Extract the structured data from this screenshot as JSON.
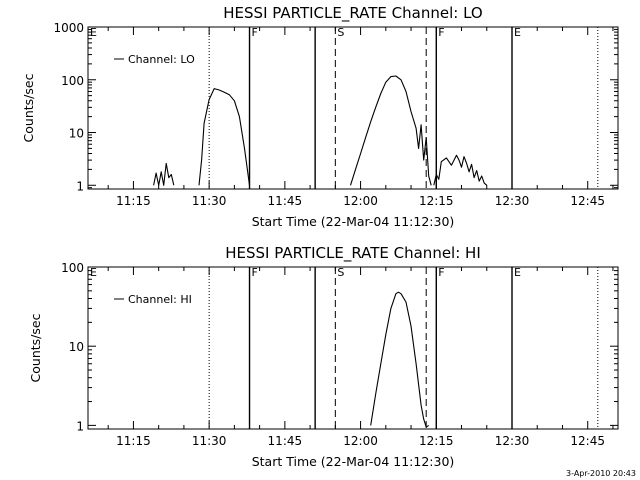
{
  "chart_data": [
    {
      "type": "line",
      "title": "HESSI PARTICLE_RATE Channel: LO",
      "xlabel": "Start Time (22-Mar-04 11:12:30)",
      "ylabel": "Counts/sec",
      "x_tick_labels": [
        "11:15",
        "11:30",
        "11:45",
        "12:00",
        "12:15",
        "12:30",
        "12:45"
      ],
      "y_tick_labels": [
        "1",
        "10",
        "100",
        "1000"
      ],
      "y_scale": "log",
      "xlim": [
        "11:06",
        "12:51"
      ],
      "ylim": [
        0.85,
        1000
      ],
      "legend": {
        "entries": [
          "Channel: LO"
        ],
        "placement": "top-left"
      },
      "vertical_markers": [
        {
          "label": "E",
          "time": "11:06",
          "style": "dotted"
        },
        {
          "label": "F",
          "time": "11:38",
          "style": "solid"
        },
        {
          "label": "",
          "time": "11:30",
          "style": "dotted"
        },
        {
          "label": "",
          "time": "11:51",
          "style": "solid"
        },
        {
          "label": "S",
          "time": "11:55",
          "style": "dashed"
        },
        {
          "label": "",
          "time": "12:13",
          "style": "dashed"
        },
        {
          "label": "F",
          "time": "12:15",
          "style": "solid"
        },
        {
          "label": "E",
          "time": "12:30",
          "style": "solid"
        },
        {
          "label": "",
          "time": "12:47",
          "style": "dotted"
        }
      ],
      "series": [
        {
          "name": "Channel: LO",
          "segments": [
            {
              "x": [
                "11:19",
                "11:19.5",
                "11:20",
                "11:20.5",
                "11:21",
                "11:21.5",
                "11:22",
                "11:22.5",
                "11:23"
              ],
              "y": [
                1,
                1.7,
                1,
                1.8,
                1,
                2.6,
                1.4,
                1.6,
                1
              ]
            },
            {
              "x": [
                "11:28",
                "11:28.5",
                "11:29",
                "11:30",
                "11:31",
                "11:32",
                "11:33",
                "11:34",
                "11:35",
                "11:36",
                "11:37",
                "11:38"
              ],
              "y": [
                1,
                3,
                15,
                42,
                68,
                64,
                58,
                52,
                40,
                20,
                5,
                1
              ]
            },
            {
              "x": [
                "11:58",
                "11:59",
                "12:00",
                "12:01",
                "12:02",
                "12:03",
                "12:04",
                "12:05",
                "12:06",
                "12:07",
                "12:08",
                "12:09",
                "12:10",
                "12:11",
                "12:11.5",
                "12:12",
                "12:12.5",
                "12:13",
                "12:13.5",
                "12:14"
              ],
              "y": [
                1,
                2,
                4,
                8,
                16,
                30,
                55,
                90,
                115,
                118,
                100,
                60,
                25,
                12,
                5,
                14,
                3,
                8,
                1.5,
                1
              ]
            },
            {
              "x": [
                "12:14.5",
                "12:15",
                "12:15.5",
                "12:16",
                "12:17",
                "12:18",
                "12:19",
                "12:19.5",
                "12:20",
                "12:20.5",
                "12:21",
                "12:21.5",
                "12:22",
                "12:22.5",
                "12:23",
                "12:23.5",
                "12:24",
                "12:24.5",
                "12:25"
              ],
              "y": [
                1,
                1.6,
                1.3,
                2.8,
                3.3,
                2.4,
                3.7,
                3.0,
                2.2,
                3.5,
                2.6,
                1.8,
                2.5,
                1.4,
                1.9,
                1.2,
                1.5,
                1.1,
                1
              ]
            }
          ]
        }
      ]
    },
    {
      "type": "line",
      "title": "HESSI PARTICLE_RATE Channel: HI",
      "xlabel": "Start Time (22-Mar-04 11:12:30)",
      "ylabel": "Counts/sec",
      "x_tick_labels": [
        "11:15",
        "11:30",
        "11:45",
        "12:00",
        "12:15",
        "12:30",
        "12:45"
      ],
      "y_tick_labels": [
        "1",
        "10",
        "100"
      ],
      "y_scale": "log",
      "xlim": [
        "11:06",
        "12:51"
      ],
      "ylim": [
        0.9,
        100
      ],
      "legend": {
        "entries": [
          "Channel: HI"
        ],
        "placement": "top-left"
      },
      "vertical_markers": [
        {
          "label": "E",
          "time": "11:06",
          "style": "dotted"
        },
        {
          "label": "F",
          "time": "11:38",
          "style": "solid"
        },
        {
          "label": "",
          "time": "11:30",
          "style": "dotted"
        },
        {
          "label": "",
          "time": "11:51",
          "style": "solid"
        },
        {
          "label": "S",
          "time": "11:55",
          "style": "dashed"
        },
        {
          "label": "",
          "time": "12:13",
          "style": "dashed"
        },
        {
          "label": "F",
          "time": "12:15",
          "style": "solid"
        },
        {
          "label": "E",
          "time": "12:30",
          "style": "solid"
        },
        {
          "label": "",
          "time": "12:47",
          "style": "dotted"
        }
      ],
      "series": [
        {
          "name": "Channel: HI",
          "segments": [
            {
              "x": [
                "12:02",
                "12:03",
                "12:04",
                "12:05",
                "12:06",
                "12:07",
                "12:07.5",
                "12:08",
                "12:09",
                "12:10",
                "12:11",
                "12:12",
                "12:12.5",
                "12:13",
                "12:13.5"
              ],
              "y": [
                1,
                2.5,
                6,
                14,
                30,
                46,
                48,
                46,
                36,
                18,
                6,
                1.8,
                1.2,
                0.95,
                1
              ]
            }
          ]
        }
      ]
    }
  ],
  "timestamp": "3-Apr-2010 20:43"
}
